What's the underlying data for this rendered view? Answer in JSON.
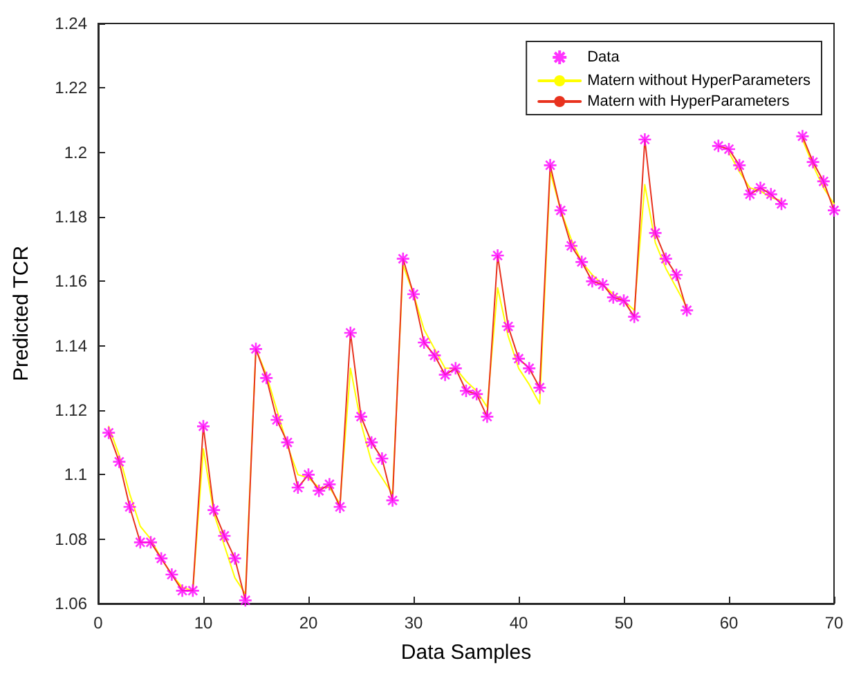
{
  "chart_data": {
    "type": "line",
    "xlabel": "Data Samples",
    "ylabel": "Predicted TCR",
    "x": [
      1,
      2,
      3,
      4,
      5,
      6,
      7,
      8,
      9,
      10,
      11,
      12,
      13,
      14,
      15,
      16,
      17,
      18,
      19,
      20,
      21,
      22,
      23,
      24,
      25,
      26,
      27,
      28,
      29,
      30,
      31,
      32,
      33,
      34,
      35,
      36,
      37,
      38,
      39,
      40,
      41,
      42,
      43,
      44,
      45,
      46,
      47,
      48,
      49,
      50,
      51,
      52,
      53,
      54,
      55,
      56,
      57,
      58,
      59,
      60,
      61,
      62,
      63,
      64,
      65,
      66,
      67,
      68,
      69,
      70
    ],
    "series": [
      {
        "name": "Data",
        "type": "scatter",
        "marker": "cross",
        "color": "#ff00ff",
        "values": [
          1.113,
          1.104,
          1.09,
          1.079,
          1.079,
          1.074,
          1.069,
          1.064,
          1.064,
          1.115,
          1.089,
          1.081,
          1.074,
          1.061,
          1.139,
          1.13,
          1.117,
          1.11,
          1.096,
          1.1,
          1.095,
          1.097,
          1.09,
          1.144,
          1.118,
          1.11,
          1.105,
          1.092,
          1.167,
          1.156,
          1.141,
          1.137,
          1.131,
          1.133,
          1.126,
          1.125,
          1.118,
          1.168,
          1.146,
          1.136,
          1.133,
          1.127,
          1.196,
          1.182,
          1.171,
          1.166,
          1.16,
          1.159,
          1.155,
          1.154,
          1.149,
          1.204,
          1.175,
          1.167,
          1.162,
          1.151,
          null,
          null,
          1.202,
          1.201,
          1.196,
          1.187,
          1.189,
          1.187,
          1.184,
          null,
          1.205,
          1.197,
          1.191,
          1.182
        ]
      },
      {
        "name": "Matern without HyperParameters",
        "color": "#ffff00",
        "values": [
          1.115,
          1.106,
          1.094,
          1.084,
          1.08,
          1.074,
          1.069,
          1.065,
          1.064,
          1.108,
          1.088,
          1.078,
          1.068,
          1.063,
          1.139,
          1.131,
          1.12,
          1.109,
          1.1,
          1.099,
          1.096,
          1.096,
          1.091,
          1.133,
          1.116,
          1.104,
          1.099,
          1.094,
          1.165,
          1.156,
          1.145,
          1.139,
          1.133,
          1.133,
          1.129,
          1.126,
          1.121,
          1.158,
          1.143,
          1.133,
          1.128,
          1.122,
          1.194,
          1.182,
          1.173,
          1.166,
          1.162,
          1.159,
          1.156,
          1.154,
          1.151,
          1.19,
          1.172,
          1.164,
          1.158,
          1.152,
          null,
          null,
          null,
          1.2,
          1.194,
          1.189,
          1.188,
          1.186,
          1.185,
          null,
          1.204,
          1.196,
          1.189,
          1.184
        ]
      },
      {
        "name": "Matern with HyperParameters",
        "color": "#e8321e",
        "values": [
          1.113,
          1.104,
          1.09,
          1.079,
          1.079,
          1.074,
          1.069,
          1.064,
          1.064,
          1.115,
          1.089,
          1.081,
          1.074,
          1.061,
          1.139,
          1.13,
          1.117,
          1.11,
          1.096,
          1.1,
          1.095,
          1.097,
          1.09,
          1.144,
          1.118,
          1.11,
          1.105,
          1.092,
          1.167,
          1.156,
          1.141,
          1.137,
          1.131,
          1.133,
          1.126,
          1.125,
          1.118,
          1.168,
          1.146,
          1.136,
          1.133,
          1.127,
          1.196,
          1.182,
          1.171,
          1.166,
          1.16,
          1.159,
          1.155,
          1.154,
          1.149,
          1.204,
          1.175,
          1.167,
          1.162,
          1.151,
          null,
          null,
          1.202,
          1.201,
          1.196,
          1.187,
          1.189,
          1.187,
          1.184,
          null,
          1.205,
          1.197,
          1.191,
          1.182
        ]
      }
    ],
    "xlim": [
      0,
      70
    ],
    "xticks": [
      0,
      10,
      20,
      30,
      40,
      50,
      60,
      70
    ],
    "ylim": [
      1.06,
      1.24
    ],
    "yticks": [
      1.06,
      1.08,
      1.1,
      1.12,
      1.14,
      1.16,
      1.18,
      1.2,
      1.22,
      1.24
    ],
    "grid": false,
    "legend": "top right",
    "marker": "none",
    "line_style": "solid"
  }
}
